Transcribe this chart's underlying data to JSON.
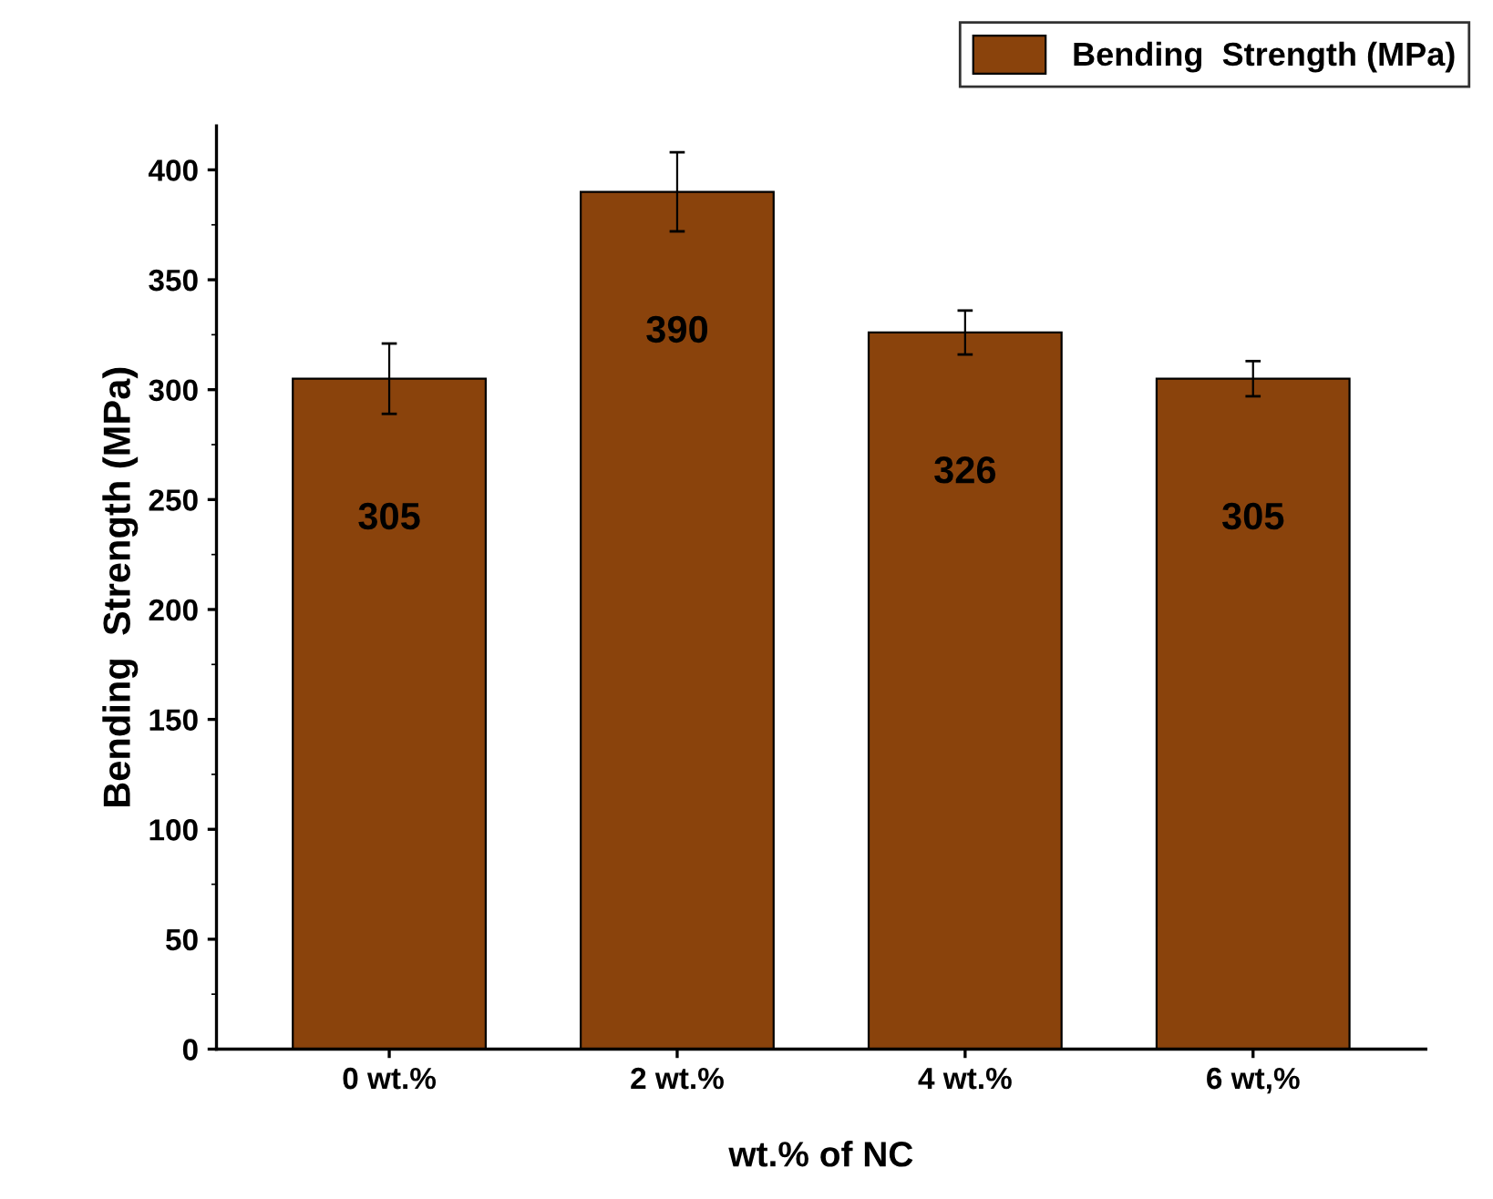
{
  "chart_data": {
    "type": "bar",
    "xlabel": "wt.% of NC",
    "ylabel": "Bending  Strength (MPa)",
    "categories": [
      "0 wt.%",
      "2 wt.%",
      "4 wt.%",
      "6 wt,%"
    ],
    "series": [
      {
        "name": "Bending  Strength (MPa)",
        "color": "#8a430c",
        "values": [
          305,
          390,
          326,
          305
        ],
        "errors": [
          16,
          18,
          10,
          8
        ]
      }
    ],
    "ylim": [
      0,
      420
    ],
    "yticks": [
      0,
      50,
      100,
      150,
      200,
      250,
      300,
      350,
      400
    ],
    "data_labels": true,
    "legend": "top right",
    "grid": false
  }
}
